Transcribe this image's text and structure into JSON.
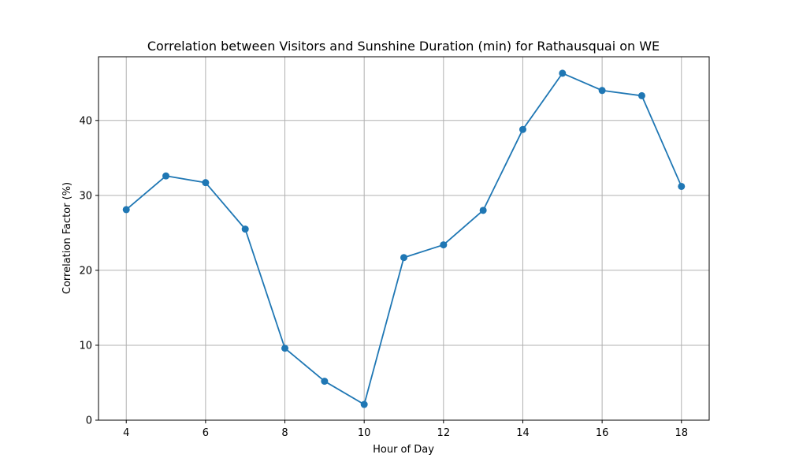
{
  "chart_data": {
    "type": "line",
    "title": "Correlation between Visitors and Sunshine Duration (min) for Rathausquai on WE",
    "xlabel": "Hour of Day",
    "ylabel": "Correlation Factor (%)",
    "x": [
      4,
      5,
      6,
      7,
      8,
      9,
      10,
      11,
      12,
      13,
      14,
      15,
      16,
      17,
      18
    ],
    "series": [
      {
        "values": [
          28.1,
          32.6,
          31.7,
          25.5,
          9.6,
          5.2,
          2.1,
          21.7,
          23.4,
          28.0,
          38.8,
          46.3,
          44.0,
          43.3,
          31.2
        ],
        "color": "#1f77b4",
        "marker": "circle"
      }
    ],
    "xlim": [
      3.3,
      18.7
    ],
    "ylim": [
      0,
      48.5
    ],
    "xticks": [
      4,
      6,
      8,
      10,
      12,
      14,
      16,
      18
    ],
    "yticks": [
      0,
      10,
      20,
      30,
      40
    ],
    "grid": true,
    "colors": {
      "grid": "#b0b0b0",
      "axes": "#000000"
    }
  }
}
